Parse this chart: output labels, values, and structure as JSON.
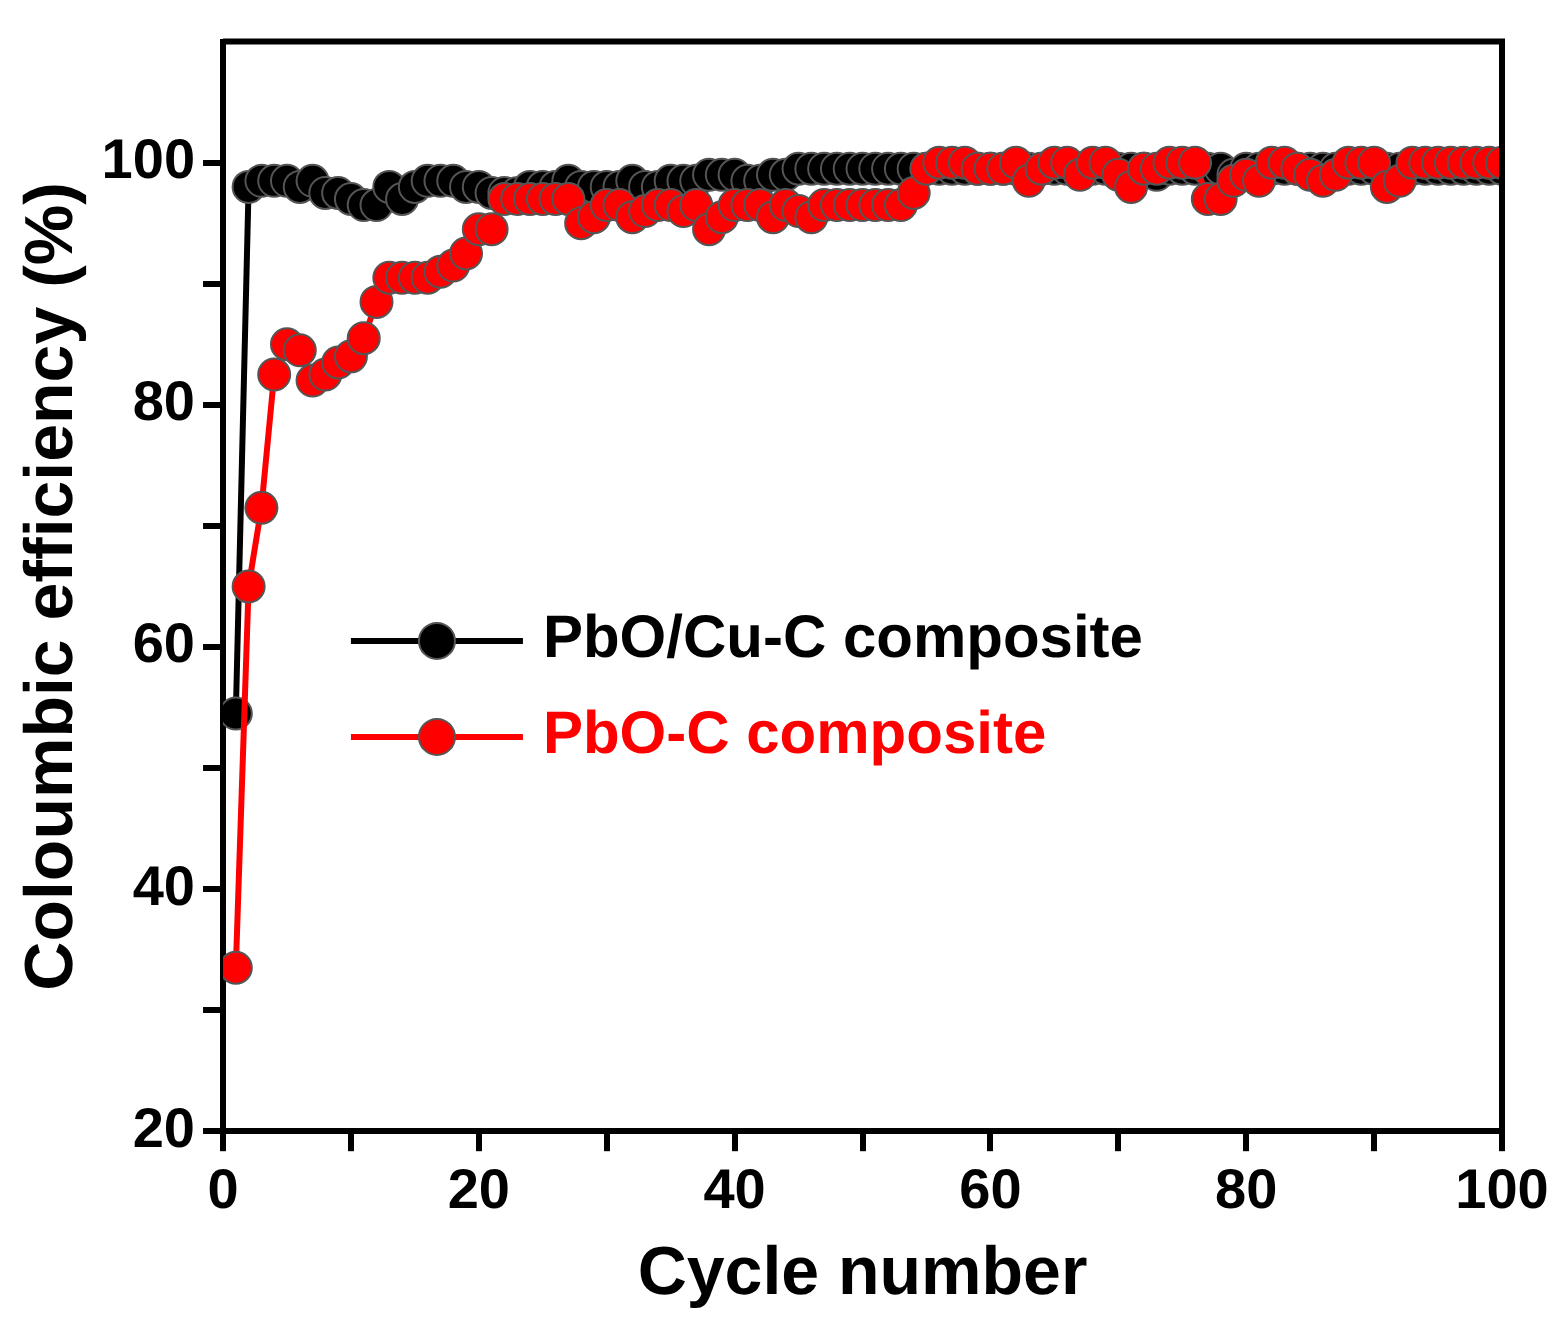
{
  "chart_data": {
    "type": "line",
    "xlabel": "Cycle number",
    "ylabel": "Coloumbic efficiency (%)",
    "x": [
      1,
      2,
      3,
      4,
      5,
      6,
      7,
      8,
      9,
      10,
      11,
      12,
      13,
      14,
      15,
      16,
      17,
      18,
      19,
      20,
      21,
      22,
      23,
      24,
      25,
      26,
      27,
      28,
      29,
      30,
      31,
      32,
      33,
      34,
      35,
      36,
      37,
      38,
      39,
      40,
      41,
      42,
      43,
      44,
      45,
      46,
      47,
      48,
      49,
      50,
      51,
      52,
      53,
      54,
      55,
      56,
      57,
      58,
      59,
      60,
      61,
      62,
      63,
      64,
      65,
      66,
      67,
      68,
      69,
      70,
      71,
      72,
      73,
      74,
      75,
      76,
      77,
      78,
      79,
      80,
      81,
      82,
      83,
      84,
      85,
      86,
      87,
      88,
      89,
      90,
      91,
      92,
      93,
      94,
      95,
      96,
      97,
      98,
      99,
      100
    ],
    "series": [
      {
        "name": "PbO/Cu-C composite",
        "color": "#000000",
        "values": [
          54.5,
          98,
          98.5,
          98.5,
          98.5,
          98,
          98.5,
          97.5,
          97.5,
          97,
          96.5,
          96.5,
          98,
          97,
          98,
          98.5,
          98.5,
          98.5,
          98,
          98,
          97.5,
          97.5,
          97.5,
          98,
          98,
          98,
          98.5,
          98,
          98,
          98,
          98,
          98.5,
          98,
          98,
          98.5,
          98.5,
          98.5,
          99,
          99,
          99,
          98.5,
          98.5,
          99,
          99,
          99.5,
          99.5,
          99.5,
          99.5,
          99.5,
          99.5,
          99.5,
          99.5,
          99.5,
          99.5,
          99.5,
          99.5,
          99.5,
          99.5,
          99.5,
          99.5,
          99.5,
          99.5,
          99.5,
          99.5,
          99.5,
          99.5,
          99.5,
          99.5,
          99.5,
          99.5,
          99.5,
          99.5,
          99,
          99.5,
          99.5,
          99.5,
          99.5,
          99.5,
          99,
          99.5,
          99.5,
          99.5,
          99.5,
          99.5,
          99.5,
          99.5,
          99.5,
          99.5,
          99.5,
          99.5,
          99.5,
          99.5,
          99.5,
          99.5,
          99.5,
          99.5,
          99.5,
          99.5,
          99.5,
          99.5
        ]
      },
      {
        "name": "PbO-C composite",
        "color": "#ff0000",
        "values": [
          33.5,
          65,
          71.5,
          82.5,
          85,
          84.5,
          82,
          82.5,
          83.5,
          84,
          85.5,
          88.5,
          90.5,
          90.5,
          90.5,
          90.5,
          91,
          91.5,
          92.5,
          94.5,
          94.5,
          97,
          97,
          97,
          97,
          97,
          97,
          95,
          95.5,
          96.5,
          96.5,
          95.5,
          96,
          96.5,
          96.5,
          96,
          96.5,
          94.5,
          95.5,
          96.5,
          96.5,
          96.5,
          95.5,
          96.5,
          96,
          95.5,
          96.5,
          96.5,
          96.5,
          96.5,
          96.5,
          96.5,
          96.5,
          97.5,
          99.5,
          100,
          100,
          100,
          99.5,
          99.5,
          99.5,
          100,
          98.5,
          99.5,
          100,
          100,
          99,
          100,
          100,
          99,
          98,
          99.5,
          99.5,
          100,
          100,
          100,
          97,
          97,
          98.5,
          99,
          98.5,
          100,
          100,
          99.5,
          99,
          98.5,
          99,
          100,
          100,
          100,
          98,
          98.5,
          100,
          100,
          100,
          100,
          100,
          100,
          100,
          100
        ]
      }
    ],
    "xlim": [
      0,
      100
    ],
    "xticks": [
      0,
      {
        "value": 10,
        "label": null
      },
      20,
      {
        "value": 30,
        "label": null
      },
      40,
      {
        "value": 50,
        "label": null
      },
      60,
      {
        "value": 70,
        "label": null
      },
      80,
      {
        "value": 90,
        "label": null
      },
      100
    ],
    "ylim": [
      20,
      110
    ],
    "yticks": [
      20,
      {
        "value": 30,
        "label": null
      },
      40,
      {
        "value": 50,
        "label": null
      },
      60,
      {
        "value": 70,
        "label": null
      },
      80,
      {
        "value": 90,
        "label": null
      },
      100
    ],
    "grid": false,
    "legend": "left",
    "marker": "circle",
    "line_style": "solid"
  }
}
